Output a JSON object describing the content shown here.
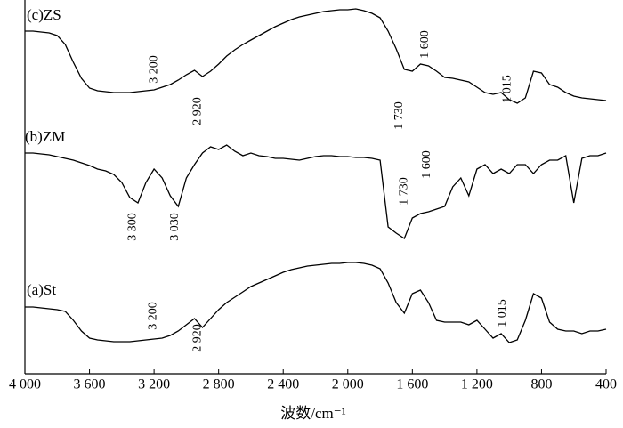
{
  "chart_data": {
    "type": "line",
    "x_label": "波数/cm⁻¹",
    "xlim": [
      4000,
      400
    ],
    "ylim": [
      0,
      420
    ],
    "xticks": [
      {
        "value": 4000,
        "label": "4 000"
      },
      {
        "value": 3600,
        "label": "3 600"
      },
      {
        "value": 3200,
        "label": "3 200"
      },
      {
        "value": 2800,
        "label": "2 800"
      },
      {
        "value": 2400,
        "label": "2 400"
      },
      {
        "value": 2000,
        "label": "2 000"
      },
      {
        "value": 1600,
        "label": "1 600"
      },
      {
        "value": 1200,
        "label": "1 200"
      },
      800,
      400
    ],
    "x": [
      4000,
      3950,
      3900,
      3850,
      3800,
      3750,
      3700,
      3650,
      3600,
      3550,
      3500,
      3450,
      3400,
      3350,
      3300,
      3250,
      3200,
      3150,
      3100,
      3050,
      3000,
      2950,
      2900,
      2850,
      2800,
      2750,
      2700,
      2650,
      2600,
      2550,
      2500,
      2450,
      2400,
      2350,
      2300,
      2250,
      2200,
      2150,
      2100,
      2050,
      2000,
      1950,
      1900,
      1850,
      1800,
      1750,
      1700,
      1650,
      1600,
      1550,
      1500,
      1450,
      1400,
      1350,
      1300,
      1250,
      1200,
      1150,
      1100,
      1050,
      1000,
      950,
      900,
      850,
      800,
      750,
      700,
      650,
      600,
      550,
      500,
      450,
      400
    ],
    "series": [
      {
        "name": "(c)ZS",
        "color": "#000000",
        "values": [
          385,
          385,
          384,
          383,
          380,
          370,
          350,
          332,
          321,
          318,
          317,
          316,
          316,
          316,
          317,
          318,
          319,
          322,
          325,
          330,
          336,
          341,
          334,
          340,
          348,
          357,
          364,
          370,
          375,
          380,
          385,
          390,
          394,
          398,
          401,
          403,
          405,
          407,
          408,
          409,
          409,
          410,
          408,
          405,
          400,
          385,
          365,
          342,
          340,
          348,
          346,
          340,
          333,
          332,
          330,
          328,
          322,
          316,
          314,
          316,
          308,
          304,
          310,
          340,
          338,
          325,
          322,
          316,
          312,
          310,
          309,
          308,
          307
        ]
      },
      {
        "name": "(b)ZM",
        "color": "#000000",
        "values": [
          248,
          248,
          247,
          246,
          244,
          242,
          240,
          237,
          234,
          230,
          228,
          224,
          215,
          198,
          192,
          215,
          230,
          220,
          200,
          188,
          220,
          235,
          248,
          255,
          252,
          257,
          250,
          245,
          248,
          245,
          244,
          242,
          242,
          241,
          240,
          242,
          244,
          245,
          245,
          244,
          244,
          243,
          243,
          242,
          240,
          165,
          158,
          152,
          175,
          180,
          182,
          185,
          188,
          210,
          220,
          200,
          230,
          235,
          225,
          230,
          225,
          235,
          235,
          225,
          235,
          240,
          240,
          245,
          192,
          242,
          245,
          245,
          248
        ]
      },
      {
        "name": "(a)St",
        "color": "#000000",
        "values": [
          75,
          75,
          74,
          73,
          72,
          70,
          60,
          48,
          40,
          38,
          37,
          36,
          36,
          36,
          37,
          38,
          39,
          40,
          43,
          48,
          55,
          62,
          52,
          62,
          72,
          80,
          86,
          92,
          98,
          102,
          106,
          110,
          114,
          117,
          119,
          121,
          122,
          123,
          124,
          124,
          125,
          125,
          124,
          122,
          118,
          102,
          80,
          68,
          90,
          94,
          80,
          60,
          58,
          58,
          58,
          55,
          60,
          50,
          40,
          45,
          35,
          38,
          60,
          90,
          85,
          58,
          50,
          48,
          48,
          45,
          48,
          48,
          50
        ]
      }
    ],
    "annotations": [
      {
        "text": "3 200",
        "x": 3200,
        "y": 342
      },
      {
        "text": "2 920",
        "x": 2930,
        "y": 295
      },
      {
        "text": "1 730",
        "x": 1680,
        "y": 290
      },
      {
        "text": "1 600",
        "x": 1520,
        "y": 370
      },
      {
        "text": "1 015",
        "x": 1010,
        "y": 320
      },
      {
        "text": "3 300",
        "x": 3330,
        "y": 165
      },
      {
        "text": "3 030",
        "x": 3070,
        "y": 165
      },
      {
        "text": "1 730",
        "x": 1650,
        "y": 205
      },
      {
        "text": "1 600",
        "x": 1510,
        "y": 235
      },
      {
        "text": "3 200",
        "x": 3205,
        "y": 65
      },
      {
        "text": "2 920",
        "x": 2930,
        "y": 40
      },
      {
        "text": "1 015",
        "x": 1040,
        "y": 68
      }
    ]
  }
}
